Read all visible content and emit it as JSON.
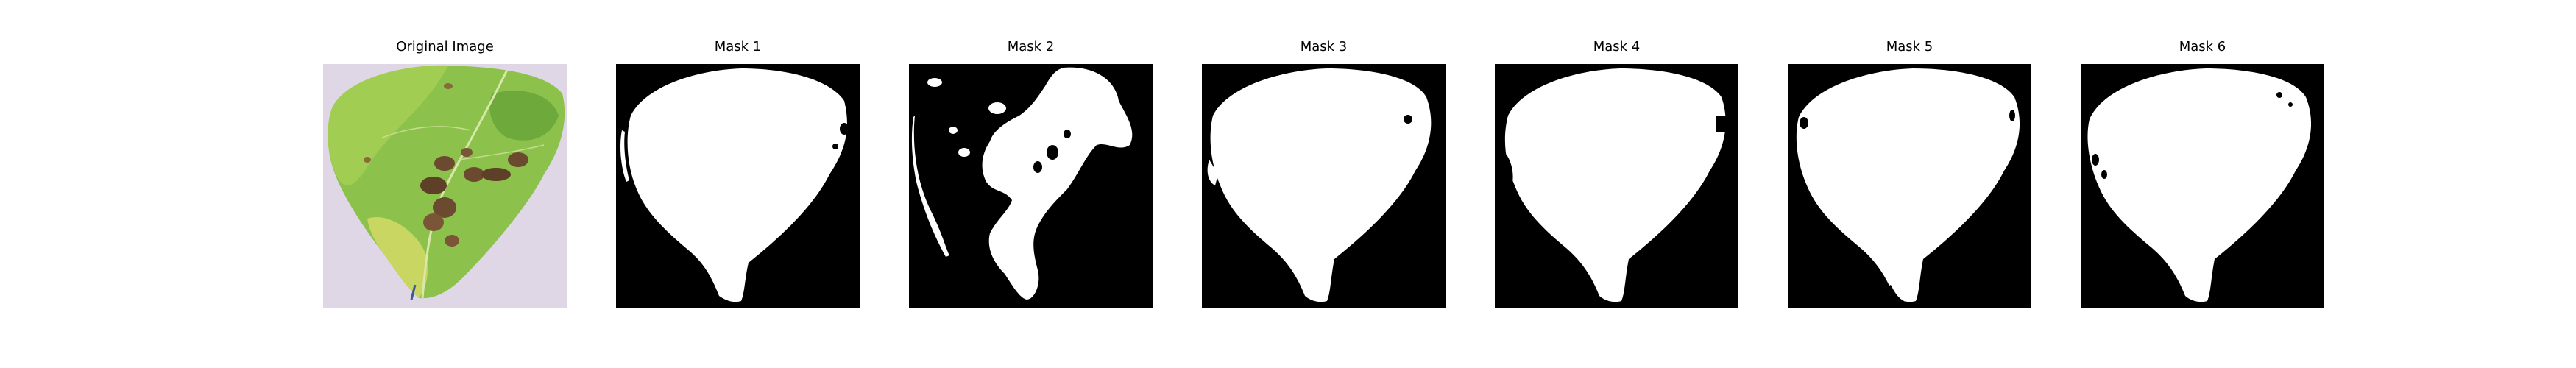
{
  "panels": [
    {
      "title": "Original Image",
      "kind": "original"
    },
    {
      "title": "Mask 1",
      "kind": "mask"
    },
    {
      "title": "Mask 2",
      "kind": "mask"
    },
    {
      "title": "Mask 3",
      "kind": "mask"
    },
    {
      "title": "Mask 4",
      "kind": "mask"
    },
    {
      "title": "Mask 5",
      "kind": "mask"
    },
    {
      "title": "Mask 6",
      "kind": "mask"
    }
  ],
  "colors": {
    "background": "#ffffff",
    "mask_background": "#000000",
    "mask_foreground": "#ffffff",
    "leaf_green": "#7fbf45",
    "leaf_yellow": "#c9d25a",
    "leaf_dark": "#4d8f2c",
    "lesion_brown": "#6b4a30",
    "photo_background": "#d8cfe0"
  }
}
